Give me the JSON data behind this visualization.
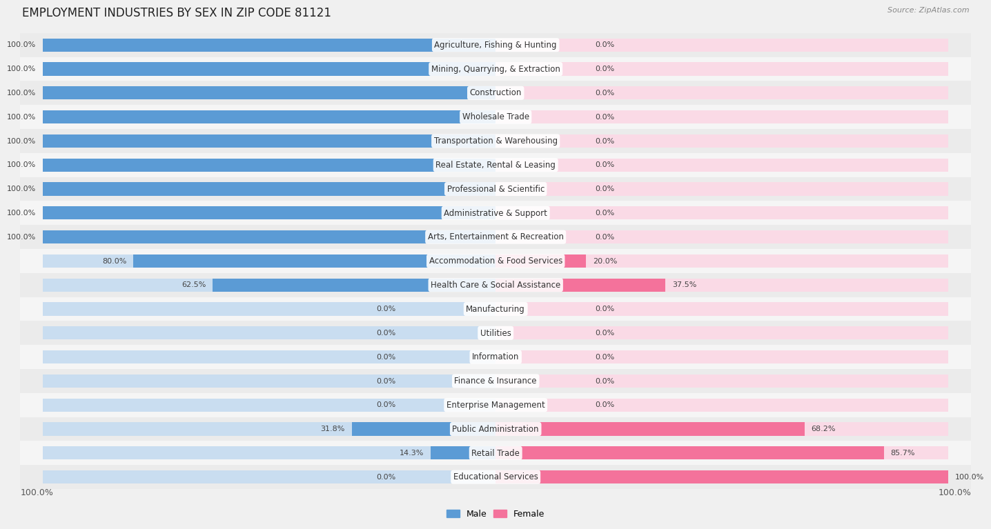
{
  "title": "EMPLOYMENT INDUSTRIES BY SEX IN ZIP CODE 81121",
  "source": "Source: ZipAtlas.com",
  "industries": [
    "Agriculture, Fishing & Hunting",
    "Mining, Quarrying, & Extraction",
    "Construction",
    "Wholesale Trade",
    "Transportation & Warehousing",
    "Real Estate, Rental & Leasing",
    "Professional & Scientific",
    "Administrative & Support",
    "Arts, Entertainment & Recreation",
    "Accommodation & Food Services",
    "Health Care & Social Assistance",
    "Manufacturing",
    "Utilities",
    "Information",
    "Finance & Insurance",
    "Enterprise Management",
    "Public Administration",
    "Retail Trade",
    "Educational Services"
  ],
  "male_pct": [
    100.0,
    100.0,
    100.0,
    100.0,
    100.0,
    100.0,
    100.0,
    100.0,
    100.0,
    80.0,
    62.5,
    0.0,
    0.0,
    0.0,
    0.0,
    0.0,
    31.8,
    14.3,
    0.0
  ],
  "female_pct": [
    0.0,
    0.0,
    0.0,
    0.0,
    0.0,
    0.0,
    0.0,
    0.0,
    0.0,
    20.0,
    37.5,
    0.0,
    0.0,
    0.0,
    0.0,
    0.0,
    68.2,
    85.7,
    100.0
  ],
  "male_color": "#5b9bd5",
  "female_color": "#f4729b",
  "male_color_light": "#c9ddf0",
  "female_color_light": "#fadae6",
  "row_bg_even": "#ebebeb",
  "row_bg_odd": "#f5f5f5",
  "bg_color": "#f0f0f0",
  "title_fontsize": 12,
  "bar_height": 0.55,
  "label_fontsize": 8.5,
  "pct_fontsize": 8,
  "x_axis_label_left": "100.0%",
  "x_axis_label_right": "100.0%"
}
